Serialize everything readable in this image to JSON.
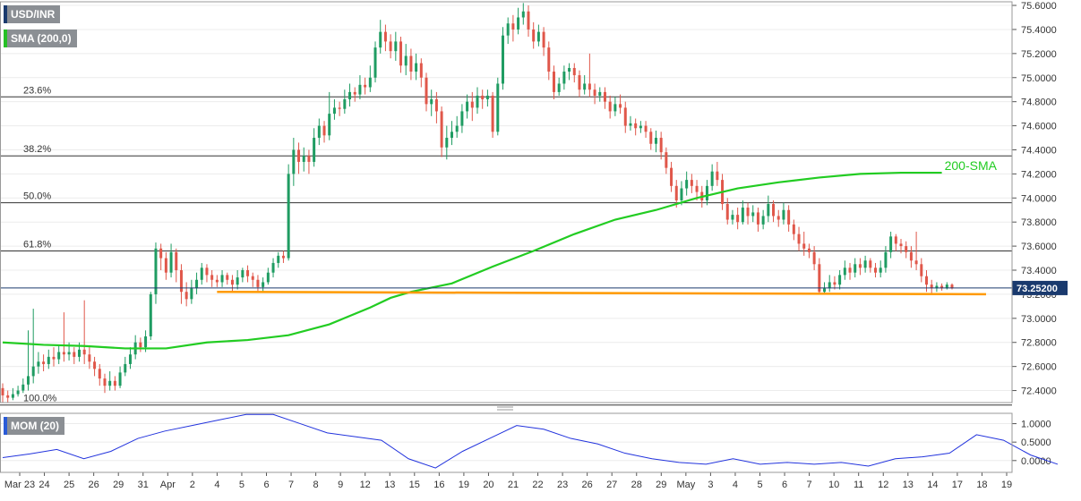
{
  "chart_data": {
    "type": "candlestick",
    "symbol": "USD/INR",
    "indicator": "SMA (200,0)",
    "oscillator": "MOM (20)",
    "price_axis": {
      "range": [
        72.3,
        75.63
      ],
      "ticks": [
        "75.6000",
        "75.4000",
        "75.2000",
        "75.0000",
        "74.8000",
        "74.6000",
        "74.4000",
        "74.2000",
        "74.0000",
        "73.8000",
        "73.6000",
        "73.4000",
        "73.2000",
        "73.0000",
        "72.8000",
        "72.6000",
        "72.4000"
      ]
    },
    "current_price": "73.25200",
    "mom_axis": {
      "range": [
        -0.32,
        1.28
      ],
      "ticks": [
        "1.0000",
        "0.5000",
        "0.0000"
      ]
    },
    "x_ticks": [
      "Mar 23",
      "24",
      "25",
      "26",
      "29",
      "31",
      "Apr",
      "2",
      "4",
      "5",
      "6",
      "7",
      "8",
      "9",
      "12",
      "13",
      "15",
      "16",
      "19",
      "20",
      "21",
      "22",
      "23",
      "26",
      "27",
      "28",
      "29",
      "May",
      "3",
      "4",
      "5",
      "6",
      "7",
      "10",
      "11",
      "12",
      "13",
      "14",
      "17",
      "18",
      "19"
    ],
    "fib_levels": [
      {
        "label": "23.6%",
        "value": 74.84
      },
      {
        "label": "38.2%",
        "value": 74.35
      },
      {
        "label": "50.0%",
        "value": 73.96
      },
      {
        "label": "61.8%",
        "value": 73.56
      },
      {
        "label": "100.0%",
        "value": 72.28
      }
    ],
    "support_line": {
      "from": 73.22,
      "to": 73.2,
      "color": "#ff9a00"
    },
    "sma_label": "200-SMA",
    "colors": {
      "up": "#1f9c62",
      "down": "#e0574a",
      "sma": "#22cc22",
      "momentum": "#2233dd",
      "support": "#ff9a00"
    },
    "sma_points": [
      [
        0,
        72.8
      ],
      [
        2,
        72.78
      ],
      [
        4,
        72.77
      ],
      [
        6,
        72.75
      ],
      [
        8,
        72.75
      ],
      [
        10,
        72.8
      ],
      [
        12,
        72.82
      ],
      [
        14,
        72.86
      ],
      [
        16,
        72.95
      ],
      [
        18,
        73.09
      ],
      [
        19,
        73.17
      ],
      [
        20,
        73.22
      ],
      [
        22,
        73.29
      ],
      [
        24,
        73.43
      ],
      [
        26,
        73.56
      ],
      [
        28,
        73.7
      ],
      [
        30,
        73.82
      ],
      [
        32,
        73.9
      ],
      [
        34,
        74.0
      ],
      [
        36,
        74.08
      ],
      [
        38,
        74.13
      ],
      [
        40,
        74.17
      ],
      [
        42,
        74.2
      ],
      [
        44,
        74.21
      ],
      [
        46,
        74.21
      ]
    ],
    "mom_points": [
      [
        0,
        0.08
      ],
      [
        1,
        0.18
      ],
      [
        2,
        0.3
      ],
      [
        3,
        0.05
      ],
      [
        4,
        0.25
      ],
      [
        5,
        0.6
      ],
      [
        6,
        0.8
      ],
      [
        7,
        0.95
      ],
      [
        8,
        1.1
      ],
      [
        9,
        1.25
      ],
      [
        10,
        1.25
      ],
      [
        11,
        1.0
      ],
      [
        12,
        0.75
      ],
      [
        13,
        0.65
      ],
      [
        14,
        0.55
      ],
      [
        15,
        0.05
      ],
      [
        16,
        -0.2
      ],
      [
        17,
        0.25
      ],
      [
        18,
        0.6
      ],
      [
        19,
        0.95
      ],
      [
        20,
        0.85
      ],
      [
        21,
        0.6
      ],
      [
        22,
        0.45
      ],
      [
        23,
        0.2
      ],
      [
        24,
        0.05
      ],
      [
        25,
        -0.05
      ],
      [
        26,
        -0.1
      ],
      [
        27,
        0.05
      ],
      [
        28,
        -0.1
      ],
      [
        29,
        -0.05
      ],
      [
        30,
        -0.1
      ],
      [
        31,
        -0.05
      ],
      [
        32,
        -0.15
      ],
      [
        33,
        0.05
      ],
      [
        34,
        0.1
      ],
      [
        35,
        0.2
      ],
      [
        36,
        0.7
      ],
      [
        37,
        0.55
      ],
      [
        38,
        0.15
      ],
      [
        39,
        -0.1
      ]
    ],
    "candles": [
      [
        72.42,
        72.36,
        72.46,
        72.3
      ],
      [
        72.36,
        72.34,
        72.4,
        72.3
      ],
      [
        72.34,
        72.37,
        72.42,
        72.32
      ],
      [
        72.37,
        72.4,
        72.44,
        72.35
      ],
      [
        72.4,
        72.45,
        72.5,
        72.38
      ],
      [
        72.45,
        72.52,
        72.9,
        72.4
      ],
      [
        72.52,
        72.6,
        73.08,
        72.46
      ],
      [
        72.6,
        72.64,
        72.72,
        72.54
      ],
      [
        72.64,
        72.62,
        72.7,
        72.56
      ],
      [
        72.62,
        72.68,
        72.74,
        72.58
      ],
      [
        72.68,
        72.66,
        72.76,
        72.6
      ],
      [
        72.66,
        72.72,
        72.78,
        72.62
      ],
      [
        72.72,
        72.7,
        73.05,
        72.64
      ],
      [
        72.7,
        72.72,
        72.8,
        72.65
      ],
      [
        72.72,
        72.68,
        72.76,
        72.62
      ],
      [
        72.68,
        72.74,
        72.8,
        72.64
      ],
      [
        72.74,
        72.7,
        73.15,
        72.62
      ],
      [
        72.7,
        72.64,
        72.76,
        72.58
      ],
      [
        72.64,
        72.58,
        72.68,
        72.52
      ],
      [
        72.58,
        72.5,
        72.62,
        72.44
      ],
      [
        72.5,
        72.44,
        72.54,
        72.38
      ],
      [
        72.44,
        72.48,
        72.56,
        72.4
      ],
      [
        72.48,
        72.44,
        72.52,
        72.4
      ],
      [
        72.44,
        72.55,
        72.6,
        72.42
      ],
      [
        72.55,
        72.62,
        72.68,
        72.52
      ],
      [
        72.62,
        72.7,
        72.76,
        72.58
      ],
      [
        72.7,
        72.8,
        72.86,
        72.66
      ],
      [
        72.8,
        72.76,
        72.84,
        72.72
      ],
      [
        72.76,
        72.85,
        72.9,
        72.72
      ],
      [
        72.85,
        73.2,
        73.22,
        72.82
      ],
      [
        73.2,
        73.58,
        73.63,
        73.12
      ],
      [
        73.58,
        73.5,
        73.62,
        73.4
      ],
      [
        73.5,
        73.38,
        73.55,
        73.32
      ],
      [
        73.38,
        73.55,
        73.62,
        73.34
      ],
      [
        73.55,
        73.4,
        73.58,
        73.3
      ],
      [
        73.4,
        73.22,
        73.45,
        73.12
      ],
      [
        73.22,
        73.16,
        73.3,
        73.1
      ],
      [
        73.16,
        73.25,
        73.32,
        73.12
      ],
      [
        73.25,
        73.32,
        73.38,
        73.2
      ],
      [
        73.32,
        73.42,
        73.46,
        73.28
      ],
      [
        73.42,
        73.36,
        73.45,
        73.3
      ],
      [
        73.36,
        73.32,
        73.4,
        73.26
      ],
      [
        73.32,
        73.3,
        73.36,
        73.26
      ],
      [
        73.3,
        73.36,
        73.4,
        73.26
      ],
      [
        73.36,
        73.32,
        73.38,
        73.28
      ],
      [
        73.32,
        73.28,
        73.36,
        73.22
      ],
      [
        73.28,
        73.34,
        73.4,
        73.24
      ],
      [
        73.34,
        73.4,
        73.42,
        73.3
      ],
      [
        73.4,
        73.35,
        73.44,
        73.3
      ],
      [
        73.35,
        73.32,
        73.38,
        73.26
      ],
      [
        73.32,
        73.26,
        73.36,
        73.22
      ],
      [
        73.26,
        73.3,
        73.34,
        73.22
      ],
      [
        73.3,
        73.38,
        73.42,
        73.28
      ],
      [
        73.38,
        73.46,
        73.5,
        73.34
      ],
      [
        73.46,
        73.52,
        73.55,
        73.42
      ],
      [
        73.52,
        73.5,
        73.56,
        73.46
      ],
      [
        73.5,
        74.2,
        74.28,
        73.48
      ],
      [
        74.2,
        74.4,
        74.5,
        74.1
      ],
      [
        74.4,
        74.3,
        74.46,
        74.2
      ],
      [
        74.3,
        74.35,
        74.42,
        74.22
      ],
      [
        74.35,
        74.3,
        74.4,
        74.2
      ],
      [
        74.3,
        74.5,
        74.58,
        74.26
      ],
      [
        74.5,
        74.6,
        74.66,
        74.44
      ],
      [
        74.6,
        74.52,
        74.64,
        74.46
      ],
      [
        74.52,
        74.7,
        74.88,
        74.48
      ],
      [
        74.7,
        74.75,
        74.82,
        74.65
      ],
      [
        74.75,
        74.74,
        74.8,
        74.68
      ],
      [
        74.74,
        74.82,
        74.9,
        74.7
      ],
      [
        74.82,
        74.88,
        74.95,
        74.76
      ],
      [
        74.88,
        74.86,
        74.92,
        74.8
      ],
      [
        74.86,
        74.94,
        75.02,
        74.82
      ],
      [
        74.94,
        74.92,
        75.0,
        74.86
      ],
      [
        74.92,
        75.0,
        75.1,
        74.88
      ],
      [
        75.0,
        75.25,
        75.3,
        74.96
      ],
      [
        75.25,
        75.38,
        75.48,
        75.2
      ],
      [
        75.38,
        75.3,
        75.44,
        75.22
      ],
      [
        75.3,
        75.22,
        75.36,
        75.16
      ],
      [
        75.22,
        75.3,
        75.38,
        75.14
      ],
      [
        75.3,
        75.1,
        75.34,
        75.04
      ],
      [
        75.1,
        75.18,
        75.28,
        75.02
      ],
      [
        75.18,
        75.05,
        75.24,
        74.98
      ],
      [
        75.05,
        75.12,
        75.2,
        74.98
      ],
      [
        75.12,
        75.0,
        75.16,
        74.92
      ],
      [
        75.0,
        74.78,
        75.04,
        74.72
      ],
      [
        74.78,
        74.82,
        74.9,
        74.68
      ],
      [
        74.82,
        74.72,
        74.88,
        74.62
      ],
      [
        74.72,
        74.42,
        74.76,
        74.34
      ],
      [
        74.42,
        74.5,
        74.6,
        74.32
      ],
      [
        74.5,
        74.55,
        74.64,
        74.44
      ],
      [
        74.55,
        74.6,
        74.68,
        74.5
      ],
      [
        74.6,
        74.72,
        74.78,
        74.54
      ],
      [
        74.72,
        74.8,
        74.86,
        74.66
      ],
      [
        74.8,
        74.75,
        74.88,
        74.64
      ],
      [
        74.75,
        74.85,
        74.92,
        74.7
      ],
      [
        74.85,
        74.82,
        74.9,
        74.74
      ],
      [
        74.82,
        74.85,
        74.9,
        74.76
      ],
      [
        74.85,
        74.55,
        74.88,
        74.5
      ],
      [
        74.55,
        74.95,
        75.0,
        74.52
      ],
      [
        74.95,
        75.35,
        75.42,
        74.9
      ],
      [
        75.35,
        75.45,
        75.5,
        75.28
      ],
      [
        75.45,
        75.4,
        75.52,
        75.3
      ],
      [
        75.4,
        75.5,
        75.58,
        75.36
      ],
      [
        75.5,
        75.55,
        75.62,
        75.44
      ],
      [
        75.55,
        75.4,
        75.6,
        75.34
      ],
      [
        75.4,
        75.3,
        75.46,
        75.24
      ],
      [
        75.3,
        75.38,
        75.44,
        75.26
      ],
      [
        75.38,
        75.25,
        75.42,
        75.18
      ],
      [
        75.25,
        75.05,
        75.3,
        74.98
      ],
      [
        75.05,
        74.88,
        75.1,
        74.82
      ],
      [
        74.88,
        74.95,
        75.0,
        74.85
      ],
      [
        74.95,
        75.05,
        75.1,
        74.9
      ],
      [
        75.05,
        75.08,
        75.12,
        74.98
      ],
      [
        75.08,
        75.02,
        75.12,
        74.96
      ],
      [
        75.02,
        74.9,
        75.06,
        74.84
      ],
      [
        74.9,
        74.95,
        75.02,
        74.86
      ],
      [
        74.95,
        74.9,
        75.2,
        74.84
      ],
      [
        74.9,
        74.85,
        74.95,
        74.78
      ],
      [
        74.85,
        74.88,
        74.92,
        74.8
      ],
      [
        74.88,
        74.8,
        74.92,
        74.74
      ],
      [
        74.8,
        74.72,
        74.85,
        74.66
      ],
      [
        74.72,
        74.78,
        74.84,
        74.68
      ],
      [
        74.78,
        74.75,
        74.86,
        74.7
      ],
      [
        74.75,
        74.6,
        74.8,
        74.54
      ],
      [
        74.6,
        74.62,
        74.68,
        74.56
      ],
      [
        74.62,
        74.58,
        74.66,
        74.52
      ],
      [
        74.58,
        74.6,
        74.64,
        74.54
      ],
      [
        74.6,
        74.55,
        74.64,
        74.5
      ],
      [
        74.55,
        74.45,
        74.58,
        74.4
      ],
      [
        74.45,
        74.5,
        74.56,
        74.38
      ],
      [
        74.5,
        74.38,
        74.55,
        74.32
      ],
      [
        74.38,
        74.25,
        74.42,
        74.2
      ],
      [
        74.25,
        74.1,
        74.3,
        74.05
      ],
      [
        74.1,
        73.98,
        74.15,
        73.92
      ],
      [
        73.98,
        74.08,
        74.14,
        73.94
      ],
      [
        74.08,
        74.15,
        74.22,
        74.02
      ],
      [
        74.15,
        74.1,
        74.2,
        74.04
      ],
      [
        74.1,
        74.05,
        74.15,
        73.98
      ],
      [
        74.05,
        73.98,
        74.1,
        73.92
      ],
      [
        73.98,
        74.1,
        74.15,
        73.94
      ],
      [
        74.1,
        74.22,
        74.28,
        74.06
      ],
      [
        74.22,
        74.15,
        74.3,
        74.1
      ],
      [
        74.15,
        73.95,
        74.2,
        73.9
      ],
      [
        73.95,
        73.82,
        74.0,
        73.78
      ],
      [
        73.82,
        73.86,
        73.9,
        73.78
      ],
      [
        73.86,
        73.8,
        73.92,
        73.74
      ],
      [
        73.8,
        73.92,
        73.98,
        73.78
      ],
      [
        73.92,
        73.85,
        73.96,
        73.78
      ],
      [
        73.85,
        73.88,
        73.94,
        73.8
      ],
      [
        73.88,
        73.78,
        73.92,
        73.72
      ],
      [
        73.78,
        73.85,
        73.9,
        73.74
      ],
      [
        73.85,
        73.95,
        74.02,
        73.8
      ],
      [
        73.95,
        73.85,
        73.98,
        73.8
      ],
      [
        73.85,
        73.82,
        73.9,
        73.76
      ],
      [
        73.82,
        73.9,
        73.96,
        73.78
      ],
      [
        73.9,
        73.78,
        73.94,
        73.72
      ],
      [
        73.78,
        73.7,
        73.82,
        73.65
      ],
      [
        73.7,
        73.62,
        73.76,
        73.56
      ],
      [
        73.62,
        73.58,
        73.72,
        73.52
      ],
      [
        73.58,
        73.55,
        73.62,
        73.5
      ],
      [
        73.55,
        73.45,
        73.6,
        73.4
      ],
      [
        73.45,
        73.22,
        73.5,
        73.2
      ],
      [
        73.22,
        73.25,
        73.3,
        73.2
      ],
      [
        73.25,
        73.3,
        73.36,
        73.22
      ],
      [
        73.3,
        73.28,
        73.35,
        73.24
      ],
      [
        73.28,
        73.36,
        73.4,
        73.24
      ],
      [
        73.36,
        73.42,
        73.48,
        73.32
      ],
      [
        73.42,
        73.38,
        73.46,
        73.32
      ],
      [
        73.38,
        73.45,
        73.5,
        73.34
      ],
      [
        73.45,
        73.42,
        73.5,
        73.36
      ],
      [
        73.42,
        73.48,
        73.52,
        73.38
      ],
      [
        73.48,
        73.42,
        73.5,
        73.38
      ],
      [
        73.42,
        73.38,
        73.46,
        73.34
      ],
      [
        73.38,
        73.42,
        73.48,
        73.34
      ],
      [
        73.42,
        73.55,
        73.6,
        73.38
      ],
      [
        73.55,
        73.68,
        73.72,
        73.5
      ],
      [
        73.68,
        73.62,
        73.7,
        73.56
      ],
      [
        73.62,
        73.6,
        73.66,
        73.54
      ],
      [
        73.6,
        73.55,
        73.64,
        73.5
      ],
      [
        73.55,
        73.48,
        73.6,
        73.42
      ],
      [
        73.48,
        73.45,
        73.72,
        73.4
      ],
      [
        73.45,
        73.35,
        73.5,
        73.3
      ],
      [
        73.35,
        73.28,
        73.4,
        73.22
      ],
      [
        73.28,
        73.25,
        73.32,
        73.2
      ],
      [
        73.25,
        73.27,
        73.3,
        73.22
      ],
      [
        73.27,
        73.25,
        73.29,
        73.23
      ],
      [
        73.25,
        73.28,
        73.3,
        73.24
      ],
      [
        73.28,
        73.25,
        73.29,
        73.24
      ]
    ]
  }
}
